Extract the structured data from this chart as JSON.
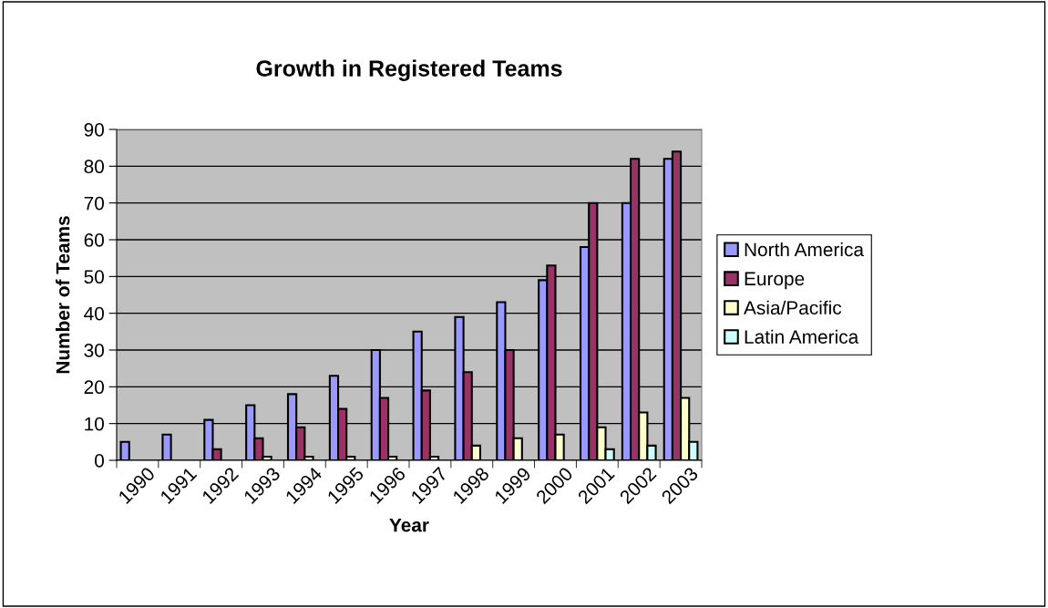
{
  "chart_data": {
    "type": "bar",
    "title": "Growth in Registered Teams",
    "xlabel": "Year",
    "ylabel": "Number of Teams",
    "categories": [
      "1990",
      "1991",
      "1992",
      "1993",
      "1994",
      "1995",
      "1996",
      "1997",
      "1998",
      "1999",
      "2000",
      "2001",
      "2002",
      "2003"
    ],
    "series": [
      {
        "name": "North America",
        "color": "#9999ff",
        "values": [
          5,
          7,
          11,
          15,
          18,
          23,
          30,
          35,
          39,
          43,
          49,
          58,
          70,
          82
        ]
      },
      {
        "name": "Europe",
        "color": "#993366",
        "values": [
          null,
          null,
          3,
          6,
          9,
          14,
          17,
          19,
          24,
          30,
          53,
          70,
          82,
          84
        ]
      },
      {
        "name": "Asia/Pacific",
        "color": "#ffffcc",
        "values": [
          null,
          null,
          null,
          1,
          1,
          1,
          1,
          1,
          4,
          6,
          7,
          9,
          13,
          17
        ]
      },
      {
        "name": "Latin America",
        "color": "#ccffff",
        "values": [
          null,
          null,
          null,
          null,
          null,
          null,
          null,
          null,
          null,
          null,
          null,
          3,
          4,
          5
        ]
      }
    ],
    "ylim": [
      0,
      90
    ],
    "yticks": [
      0,
      10,
      20,
      30,
      40,
      50,
      60,
      70,
      80,
      90
    ],
    "grid": "y",
    "legend": "right"
  }
}
